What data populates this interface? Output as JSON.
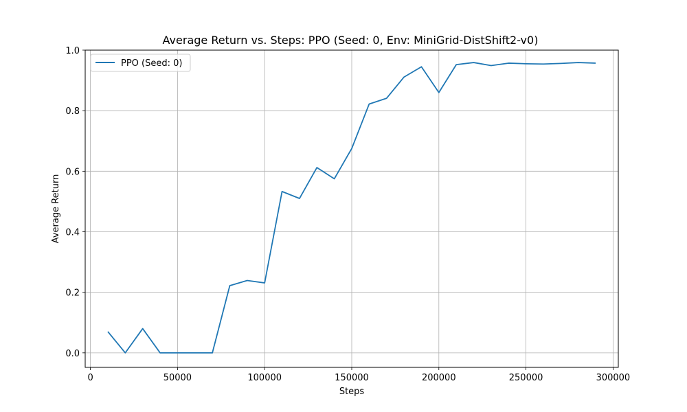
{
  "chart_data": {
    "type": "line",
    "title": "Average Return vs. Steps: PPO (Seed: 0, Env: MiniGrid-DistShift2-v0)",
    "xlabel": "Steps",
    "ylabel": "Average Return",
    "xlim": [
      -3000,
      303000
    ],
    "ylim": [
      -0.048,
      1.0
    ],
    "xticks": [
      0,
      50000,
      100000,
      150000,
      200000,
      250000,
      300000
    ],
    "yticks": [
      0.0,
      0.2,
      0.4,
      0.6,
      0.8,
      1.0
    ],
    "xtick_labels": [
      "0",
      "50000",
      "100000",
      "150000",
      "200000",
      "250000",
      "300000"
    ],
    "ytick_labels": [
      "0.0",
      "0.2",
      "0.4",
      "0.6",
      "0.8",
      "1.0"
    ],
    "grid": true,
    "legend_position": "top-left",
    "series": [
      {
        "name": "PPO (Seed: 0)",
        "color": "#1f77b4",
        "x": [
          10000,
          20000,
          30000,
          40000,
          50000,
          60000,
          70000,
          80000,
          90000,
          100000,
          110000,
          120000,
          130000,
          140000,
          150000,
          160000,
          170000,
          180000,
          190000,
          200000,
          210000,
          220000,
          230000,
          240000,
          250000,
          260000,
          270000,
          280000,
          290000
        ],
        "y": [
          0.07,
          0.0,
          0.08,
          0.0,
          0.0,
          0.0,
          0.0,
          0.222,
          0.239,
          0.231,
          0.533,
          0.51,
          0.612,
          0.575,
          0.675,
          0.822,
          0.841,
          0.911,
          0.945,
          0.86,
          0.952,
          0.959,
          0.949,
          0.957,
          0.955,
          0.954,
          0.956,
          0.959,
          0.957
        ]
      }
    ]
  }
}
